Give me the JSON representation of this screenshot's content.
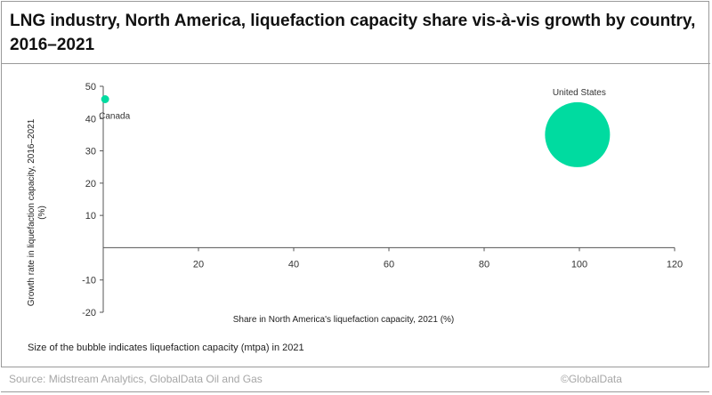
{
  "header": {
    "title": "LNG industry, North America, liquefaction capacity share vis-à-vis growth by country, 2016–2021"
  },
  "chart_data": {
    "type": "scatter",
    "xlabel": "Share in North America's liquefaction capacity, 2021 (%)",
    "ylabel_line1": "Growth rate in liquefaction capacity, 2016–2021",
    "ylabel_line2": "(%)",
    "xlim": [
      0,
      120
    ],
    "ylim": [
      -20,
      50
    ],
    "x_ticks": [
      "20",
      "40",
      "60",
      "80",
      "100",
      "120"
    ],
    "y_ticks": [
      "50",
      "40",
      "30",
      "20",
      "10",
      "-10",
      "-20"
    ],
    "grid": false,
    "bubble_color": "#00dba0",
    "points": [
      {
        "name": "Canada",
        "x": 0.4,
        "y": 46,
        "size": 1.5
      },
      {
        "name": "United States",
        "x": 99.6,
        "y": 35,
        "size": 100
      }
    ],
    "note": "Size of the bubble indicates liquefaction capacity (mtpa) in 2021"
  },
  "footer": {
    "source": "Source: Midstream Analytics, GlobalData Oil and Gas",
    "copyright": "©GlobalData"
  }
}
